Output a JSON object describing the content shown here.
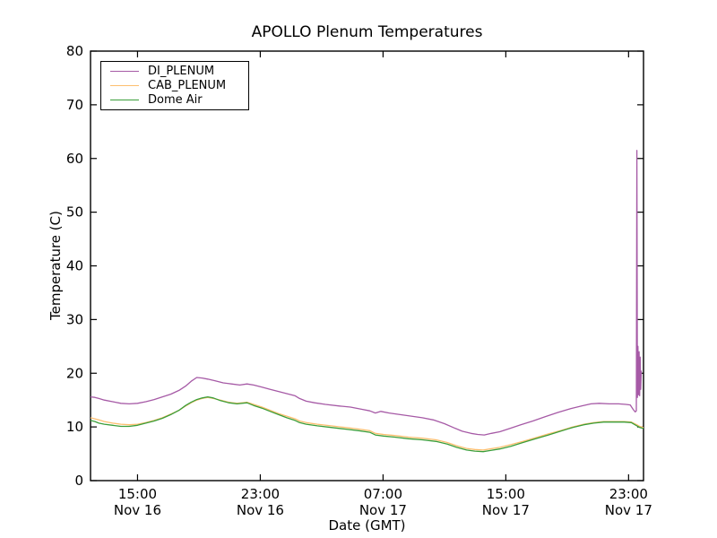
{
  "figure": {
    "background": "#ffffff",
    "axis_color": "#000000"
  },
  "chart_data": {
    "type": "line",
    "title": "APOLLO Plenum Temperatures",
    "xlabel": "Date (GMT)",
    "ylabel": "Temperature (C)",
    "ylim": [
      0,
      80
    ],
    "grid": false,
    "legend_position": "upper-left",
    "y_ticks": [
      0,
      10,
      20,
      30,
      40,
      50,
      60,
      70,
      80
    ],
    "x_ticks": [
      {
        "pos": 0.085,
        "time": "15:00",
        "date": "Nov 16"
      },
      {
        "pos": 0.307,
        "time": "23:00",
        "date": "Nov 16"
      },
      {
        "pos": 0.529,
        "time": "07:00",
        "date": "Nov 17"
      },
      {
        "pos": 0.751,
        "time": "15:00",
        "date": "Nov 17"
      },
      {
        "pos": 0.973,
        "time": "23:00",
        "date": "Nov 17"
      }
    ],
    "series": [
      {
        "name": "DI_PLENUM",
        "color": "#a65aa6",
        "points": [
          [
            0.0,
            15.6
          ],
          [
            0.008,
            15.5
          ],
          [
            0.015,
            15.3
          ],
          [
            0.025,
            15.0
          ],
          [
            0.04,
            14.7
          ],
          [
            0.055,
            14.4
          ],
          [
            0.07,
            14.3
          ],
          [
            0.085,
            14.4
          ],
          [
            0.1,
            14.7
          ],
          [
            0.115,
            15.1
          ],
          [
            0.13,
            15.6
          ],
          [
            0.145,
            16.1
          ],
          [
            0.16,
            16.8
          ],
          [
            0.172,
            17.6
          ],
          [
            0.182,
            18.5
          ],
          [
            0.192,
            19.2
          ],
          [
            0.202,
            19.1
          ],
          [
            0.212,
            18.9
          ],
          [
            0.225,
            18.6
          ],
          [
            0.24,
            18.2
          ],
          [
            0.255,
            18.0
          ],
          [
            0.27,
            17.8
          ],
          [
            0.283,
            18.0
          ],
          [
            0.295,
            17.8
          ],
          [
            0.31,
            17.4
          ],
          [
            0.325,
            17.0
          ],
          [
            0.34,
            16.6
          ],
          [
            0.355,
            16.2
          ],
          [
            0.37,
            15.8
          ],
          [
            0.378,
            15.3
          ],
          [
            0.39,
            14.8
          ],
          [
            0.405,
            14.5
          ],
          [
            0.425,
            14.2
          ],
          [
            0.45,
            13.9
          ],
          [
            0.47,
            13.7
          ],
          [
            0.49,
            13.3
          ],
          [
            0.505,
            13.0
          ],
          [
            0.515,
            12.6
          ],
          [
            0.525,
            12.9
          ],
          [
            0.54,
            12.6
          ],
          [
            0.56,
            12.3
          ],
          [
            0.58,
            12.0
          ],
          [
            0.6,
            11.7
          ],
          [
            0.62,
            11.3
          ],
          [
            0.64,
            10.6
          ],
          [
            0.658,
            9.8
          ],
          [
            0.672,
            9.2
          ],
          [
            0.688,
            8.8
          ],
          [
            0.7,
            8.6
          ],
          [
            0.712,
            8.5
          ],
          [
            0.725,
            8.8
          ],
          [
            0.74,
            9.1
          ],
          [
            0.758,
            9.7
          ],
          [
            0.778,
            10.4
          ],
          [
            0.8,
            11.1
          ],
          [
            0.822,
            11.9
          ],
          [
            0.845,
            12.7
          ],
          [
            0.868,
            13.4
          ],
          [
            0.888,
            13.9
          ],
          [
            0.905,
            14.3
          ],
          [
            0.92,
            14.4
          ],
          [
            0.938,
            14.3
          ],
          [
            0.955,
            14.3
          ],
          [
            0.968,
            14.2
          ],
          [
            0.976,
            14.1
          ],
          [
            0.981,
            13.3
          ],
          [
            0.985,
            12.8
          ],
          [
            0.987,
            13.0
          ],
          [
            0.988,
            61.5
          ],
          [
            0.989,
            15.5
          ],
          [
            0.99,
            25.0
          ],
          [
            0.991,
            16.0
          ],
          [
            0.992,
            24.0
          ],
          [
            0.993,
            15.8
          ],
          [
            0.994,
            23.0
          ],
          [
            0.995,
            17.0
          ],
          [
            0.996,
            20.5
          ]
        ]
      },
      {
        "name": "CAB_PLENUM",
        "color": "#fdbf6f",
        "points": [
          [
            0.0,
            11.7
          ],
          [
            0.008,
            11.5
          ],
          [
            0.015,
            11.3
          ],
          [
            0.025,
            11.0
          ],
          [
            0.04,
            10.7
          ],
          [
            0.055,
            10.5
          ],
          [
            0.07,
            10.4
          ],
          [
            0.085,
            10.5
          ],
          [
            0.1,
            10.8
          ],
          [
            0.115,
            11.2
          ],
          [
            0.13,
            11.7
          ],
          [
            0.145,
            12.4
          ],
          [
            0.16,
            13.1
          ],
          [
            0.172,
            13.9
          ],
          [
            0.182,
            14.5
          ],
          [
            0.192,
            15.0
          ],
          [
            0.202,
            15.3
          ],
          [
            0.212,
            15.5
          ],
          [
            0.222,
            15.3
          ],
          [
            0.235,
            15.0
          ],
          [
            0.25,
            14.6
          ],
          [
            0.265,
            14.4
          ],
          [
            0.283,
            14.6
          ],
          [
            0.295,
            14.2
          ],
          [
            0.31,
            13.7
          ],
          [
            0.325,
            13.1
          ],
          [
            0.34,
            12.5
          ],
          [
            0.355,
            12.0
          ],
          [
            0.37,
            11.5
          ],
          [
            0.378,
            11.1
          ],
          [
            0.39,
            10.8
          ],
          [
            0.41,
            10.5
          ],
          [
            0.435,
            10.2
          ],
          [
            0.46,
            9.9
          ],
          [
            0.485,
            9.6
          ],
          [
            0.505,
            9.3
          ],
          [
            0.515,
            8.8
          ],
          [
            0.53,
            8.6
          ],
          [
            0.55,
            8.4
          ],
          [
            0.575,
            8.1
          ],
          [
            0.6,
            7.9
          ],
          [
            0.625,
            7.6
          ],
          [
            0.645,
            7.1
          ],
          [
            0.662,
            6.5
          ],
          [
            0.68,
            6.0
          ],
          [
            0.695,
            5.8
          ],
          [
            0.71,
            5.7
          ],
          [
            0.722,
            5.9
          ],
          [
            0.74,
            6.2
          ],
          [
            0.76,
            6.7
          ],
          [
            0.782,
            7.3
          ],
          [
            0.805,
            8.0
          ],
          [
            0.828,
            8.7
          ],
          [
            0.85,
            9.3
          ],
          [
            0.872,
            10.0
          ],
          [
            0.892,
            10.5
          ],
          [
            0.91,
            10.8
          ],
          [
            0.928,
            11.0
          ],
          [
            0.948,
            11.0
          ],
          [
            0.965,
            11.0
          ],
          [
            0.978,
            10.9
          ],
          [
            0.988,
            10.4
          ],
          [
            0.993,
            10.1
          ],
          [
            1.0,
            9.9
          ]
        ]
      },
      {
        "name": "Dome Air",
        "color": "#3a9e3a",
        "points": [
          [
            0.0,
            11.2
          ],
          [
            0.008,
            11.0
          ],
          [
            0.015,
            10.7
          ],
          [
            0.025,
            10.5
          ],
          [
            0.04,
            10.3
          ],
          [
            0.055,
            10.1
          ],
          [
            0.07,
            10.1
          ],
          [
            0.085,
            10.3
          ],
          [
            0.1,
            10.7
          ],
          [
            0.115,
            11.1
          ],
          [
            0.13,
            11.6
          ],
          [
            0.145,
            12.3
          ],
          [
            0.16,
            13.1
          ],
          [
            0.172,
            14.0
          ],
          [
            0.182,
            14.6
          ],
          [
            0.192,
            15.1
          ],
          [
            0.202,
            15.4
          ],
          [
            0.212,
            15.6
          ],
          [
            0.222,
            15.4
          ],
          [
            0.235,
            14.9
          ],
          [
            0.25,
            14.5
          ],
          [
            0.265,
            14.3
          ],
          [
            0.283,
            14.5
          ],
          [
            0.295,
            14.0
          ],
          [
            0.31,
            13.5
          ],
          [
            0.325,
            12.9
          ],
          [
            0.34,
            12.3
          ],
          [
            0.355,
            11.7
          ],
          [
            0.37,
            11.2
          ],
          [
            0.378,
            10.8
          ],
          [
            0.39,
            10.5
          ],
          [
            0.41,
            10.2
          ],
          [
            0.435,
            9.9
          ],
          [
            0.46,
            9.6
          ],
          [
            0.485,
            9.3
          ],
          [
            0.505,
            9.0
          ],
          [
            0.515,
            8.5
          ],
          [
            0.53,
            8.3
          ],
          [
            0.55,
            8.1
          ],
          [
            0.575,
            7.8
          ],
          [
            0.6,
            7.6
          ],
          [
            0.625,
            7.3
          ],
          [
            0.645,
            6.8
          ],
          [
            0.662,
            6.2
          ],
          [
            0.68,
            5.7
          ],
          [
            0.695,
            5.5
          ],
          [
            0.71,
            5.4
          ],
          [
            0.722,
            5.6
          ],
          [
            0.74,
            5.9
          ],
          [
            0.76,
            6.4
          ],
          [
            0.782,
            7.1
          ],
          [
            0.805,
            7.8
          ],
          [
            0.828,
            8.5
          ],
          [
            0.85,
            9.2
          ],
          [
            0.872,
            9.9
          ],
          [
            0.892,
            10.4
          ],
          [
            0.91,
            10.7
          ],
          [
            0.928,
            10.9
          ],
          [
            0.948,
            10.9
          ],
          [
            0.965,
            10.9
          ],
          [
            0.978,
            10.8
          ],
          [
            0.988,
            10.2
          ],
          [
            0.993,
            9.9
          ],
          [
            1.0,
            9.7
          ]
        ]
      }
    ]
  }
}
